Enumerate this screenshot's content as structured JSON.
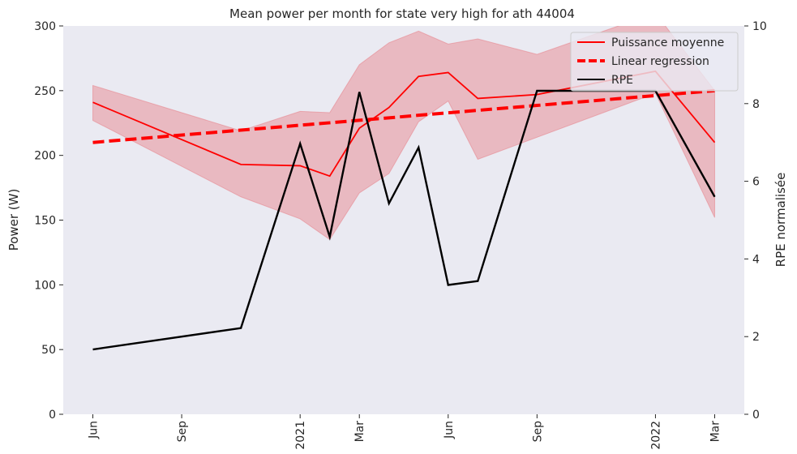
{
  "chart_data": {
    "type": "line",
    "title": "Mean power per month for state very high for ath 44004",
    "ylabel": "Power (W)",
    "y2label": "RPE normalisée",
    "x": [
      "2020-06",
      "2020-11",
      "2021-01",
      "2021-02",
      "2021-03",
      "2021-04",
      "2021-05",
      "2021-06",
      "2021-07",
      "2021-09",
      "2022-01",
      "2022-03"
    ],
    "xlim": [
      "2020-05",
      "2022-04"
    ],
    "xticks": [
      {
        "value": "2020-06",
        "label": "Jun"
      },
      {
        "value": "2020-09",
        "label": "Sep"
      },
      {
        "value": "2021-01",
        "label": "2021"
      },
      {
        "value": "2021-03",
        "label": "Mar"
      },
      {
        "value": "2021-06",
        "label": "Jun"
      },
      {
        "value": "2021-09",
        "label": "Sep"
      },
      {
        "value": "2022-01",
        "label": "2022"
      },
      {
        "value": "2022-03",
        "label": "Mar"
      }
    ],
    "ylim": [
      0,
      300
    ],
    "yticks": [
      0,
      50,
      100,
      150,
      200,
      250,
      300
    ],
    "y2lim": [
      0,
      10
    ],
    "y2ticks": [
      0,
      2,
      4,
      6,
      8,
      10
    ],
    "grid": false,
    "legend": "upper right",
    "series": [
      {
        "name": "Puissance moyenne",
        "color": "#ff0000",
        "values": [
          241,
          193,
          192,
          184,
          221,
          237,
          261,
          264,
          244,
          247,
          265,
          210
        ],
        "lower": [
          227,
          168,
          151,
          135,
          171,
          186,
          226,
          242,
          197,
          214,
          248,
          152
        ],
        "upper": [
          254,
          219,
          234,
          233,
          270,
          287,
          296,
          286,
          290,
          278,
          310,
          250
        ],
        "band_color": "#e8878f"
      },
      {
        "name": "Linear regression",
        "color": "#ff0000",
        "style": "dashed",
        "values": [
          210,
          219.5,
          223.3,
          225.2,
          227.1,
          229,
          231,
          232.9,
          234.8,
          238.6,
          246.2,
          250
        ]
      },
      {
        "name": "RPE",
        "color": "#000000",
        "axis": "y2",
        "values": [
          1.67,
          2.22,
          6.97,
          4.57,
          8.3,
          5.43,
          6.87,
          3.33,
          3.43,
          8.33,
          8.33,
          5.6
        ]
      }
    ]
  }
}
